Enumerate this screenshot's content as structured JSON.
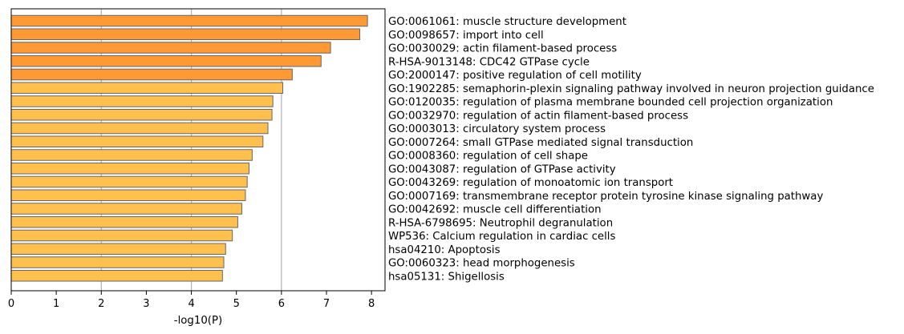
{
  "chart_data": {
    "type": "bar",
    "orientation": "horizontal",
    "title": "",
    "xlabel": "-log10(P)",
    "ylabel": "",
    "xlim": [
      0,
      8.3
    ],
    "xticks": [
      0,
      1,
      2,
      3,
      4,
      5,
      6,
      7,
      8
    ],
    "grid": "vertical gridlines at 2, 4, 6",
    "legend": "none",
    "categories": [
      "GO:0061061: muscle structure development",
      "GO:0098657: import into cell",
      "GO:0030029: actin filament-based process",
      "R-HSA-9013148: CDC42 GTPase cycle",
      "GO:2000147: positive regulation of cell motility",
      "GO:1902285: semaphorin-plexin signaling pathway involved in neuron projection guidance",
      "GO:0120035: regulation of plasma membrane bounded cell projection organization",
      "GO:0032970: regulation of actin filament-based process",
      "GO:0003013: circulatory system process",
      "GO:0007264: small GTPase mediated signal transduction",
      "GO:0008360: regulation of cell shape",
      "GO:0043087: regulation of GTPase activity",
      "GO:0043269: regulation of monoatomic ion transport",
      "GO:0007169: transmembrane receptor protein tyrosine kinase signaling pathway",
      "GO:0042692: muscle cell differentiation",
      "R-HSA-6798695: Neutrophil degranulation",
      "WP536: Calcium regulation in cardiac cells",
      "hsa04210: Apoptosis",
      "GO:0060323: head morphogenesis",
      "hsa05131: Shigellosis"
    ],
    "values": [
      7.91,
      7.74,
      7.09,
      6.88,
      6.24,
      6.03,
      5.81,
      5.79,
      5.7,
      5.59,
      5.35,
      5.28,
      5.24,
      5.2,
      5.12,
      5.03,
      4.91,
      4.76,
      4.72,
      4.69
    ],
    "colors": {
      "dark": "#ff9933",
      "light": "#ffc04d",
      "edge": "#666666",
      "grid": "#b0b0b0",
      "axis": "#000000"
    },
    "dark_count": 5
  }
}
